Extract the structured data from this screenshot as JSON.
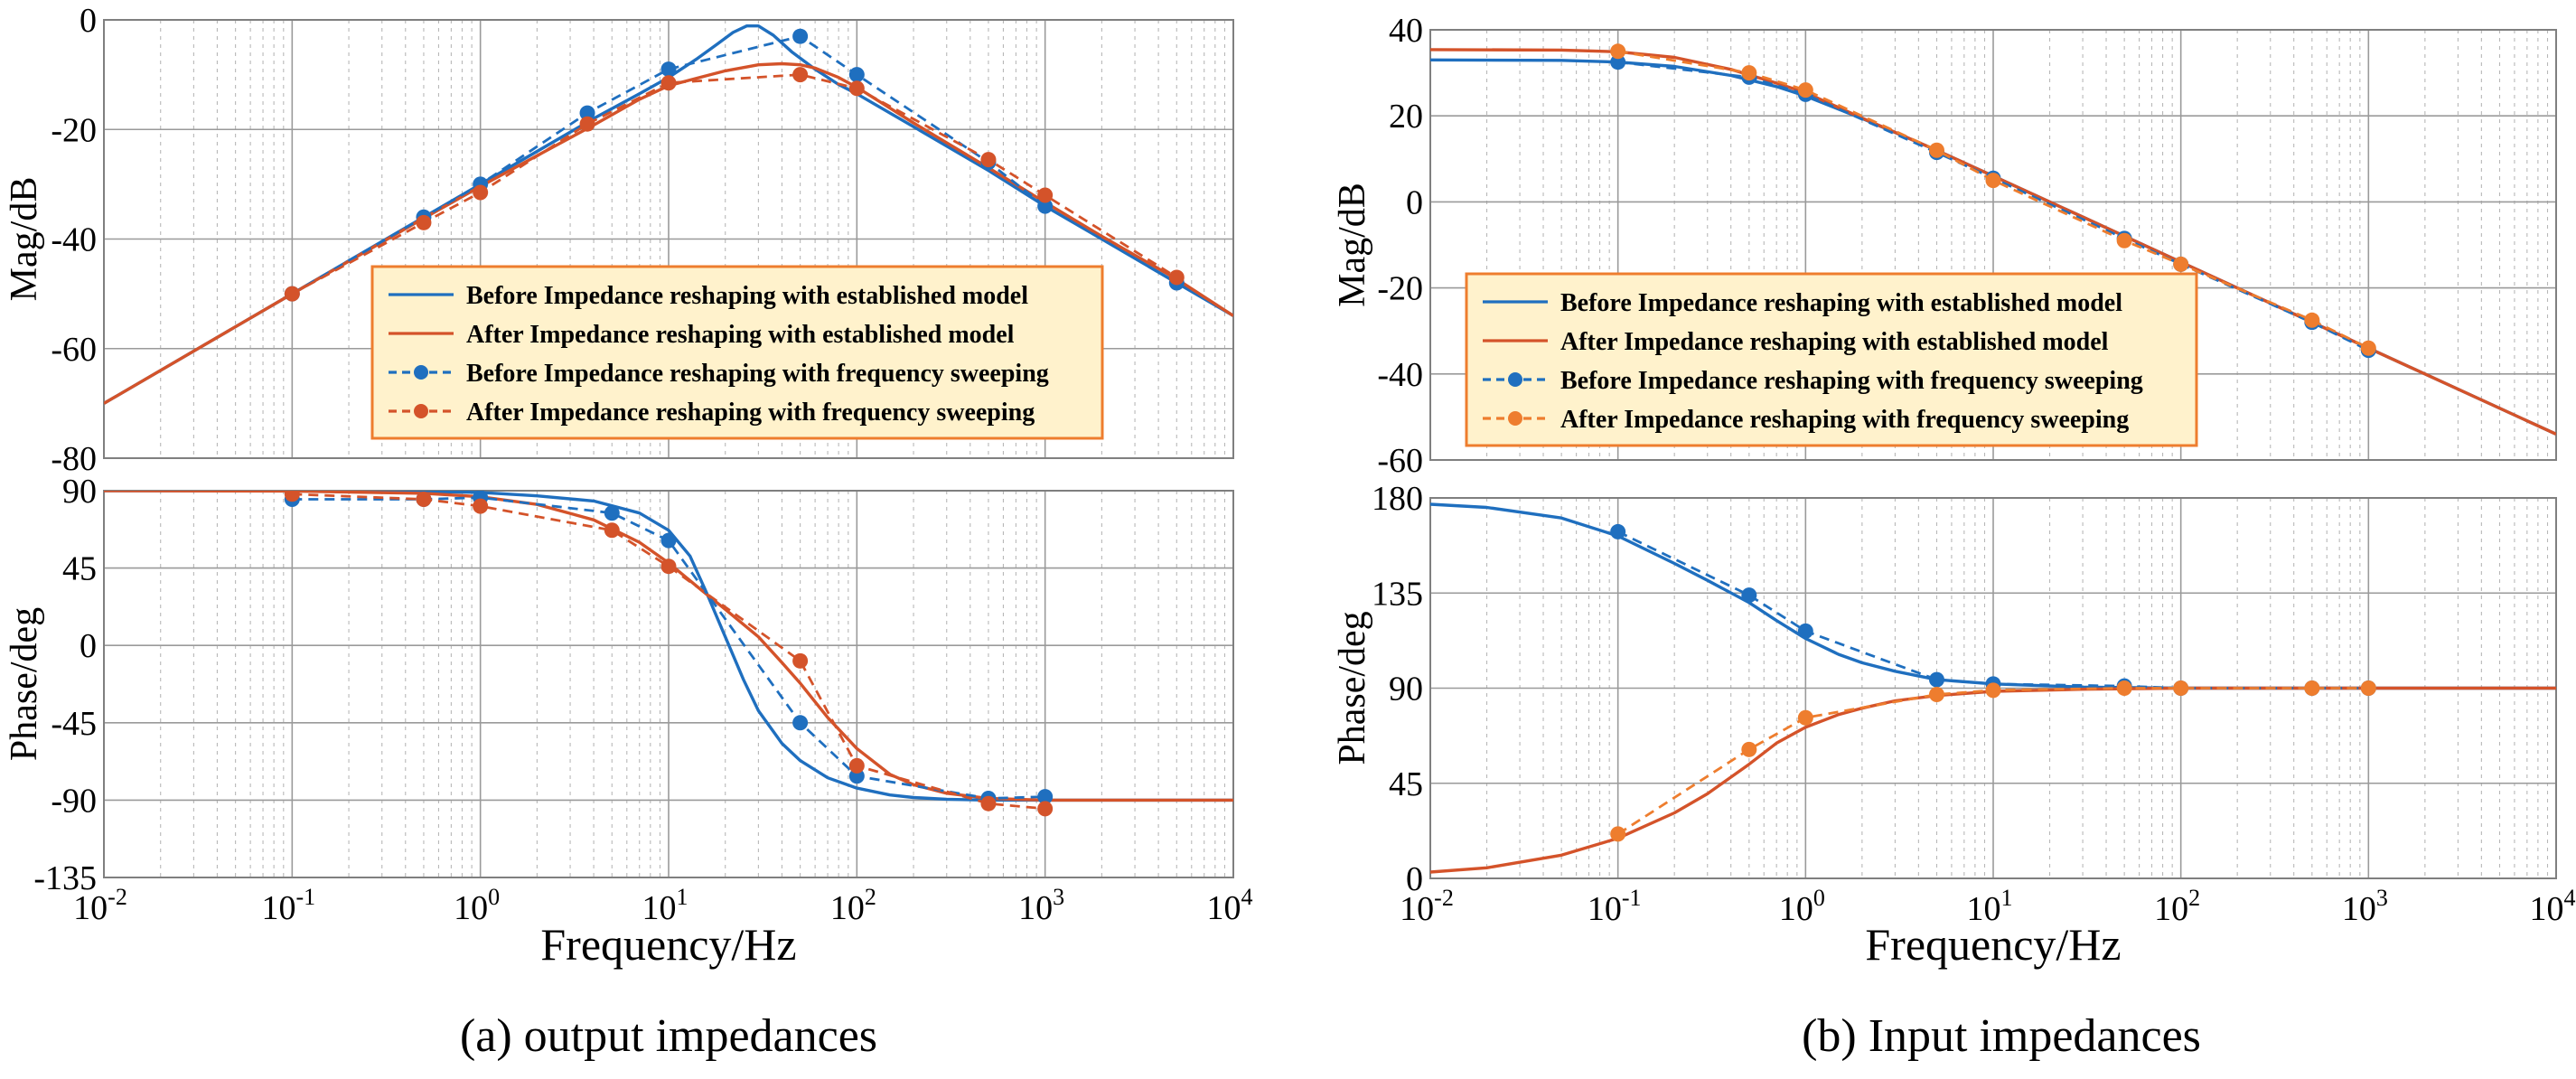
{
  "colors": {
    "blue": "#1f6fbf",
    "red": "#d4532a",
    "orange": "#ee7d2e",
    "legend_bg": "#fff2cc",
    "legend_border": "#ee7d2e"
  },
  "chart_data": [
    {
      "id": "a",
      "type": "line",
      "caption": "(a) output impedances",
      "xlabel": "Frequency/Hz",
      "xscale": "log",
      "xlim": [
        0.01,
        10000
      ],
      "xticks": [
        0.01,
        0.1,
        1,
        10,
        100,
        1000,
        10000
      ],
      "xtick_labels": [
        [
          "10",
          "-2"
        ],
        [
          "10",
          "-1"
        ],
        [
          "10",
          "0"
        ],
        [
          "10",
          "1"
        ],
        [
          "10",
          "2"
        ],
        [
          "10",
          "3"
        ],
        [
          "10",
          "4"
        ]
      ],
      "legend": {
        "position": "lower-right of magnitude panel",
        "entries": [
          {
            "label": "Before Impedance reshaping with established model",
            "series": "before_model"
          },
          {
            "label": "After Impedance reshaping with established model",
            "series": "after_model"
          },
          {
            "label": "Before Impedance reshaping with frequency sweeping",
            "series": "before_sweep"
          },
          {
            "label": "After Impedance reshaping with frequency sweeping",
            "series": "after_sweep"
          }
        ]
      },
      "panels": [
        {
          "name": "magnitude",
          "ylabel": "Mag/dB",
          "ylim": [
            -80,
            0
          ],
          "yticks": [
            0,
            -20,
            -40,
            -60,
            -80
          ],
          "ytick_labels": [
            "0",
            "-20",
            "-40",
            "-60",
            "-80"
          ],
          "series": [
            {
              "key": "before_model",
              "style": "solid",
              "color": "blue",
              "x": [
                0.01,
                0.1,
                0.5,
                1,
                2,
                4,
                7,
                10,
                14,
                18,
                22,
                26,
                30,
                36,
                45,
                60,
                80,
                100,
                200,
                500,
                1000,
                2000,
                5000,
                10000
              ],
              "y": [
                -70,
                -50,
                -36,
                -30,
                -24,
                -18,
                -13.5,
                -10.5,
                -7.2,
                -4.5,
                -2.3,
                -1.1,
                -1.1,
                -2.8,
                -5.8,
                -9.0,
                -11.8,
                -13.5,
                -19.5,
                -27.5,
                -34,
                -40,
                -48,
                -54
              ]
            },
            {
              "key": "after_model",
              "style": "solid",
              "color": "red",
              "x": [
                0.01,
                0.1,
                0.5,
                1,
                2,
                4,
                7,
                10,
                15,
                20,
                30,
                40,
                50,
                60,
                80,
                100,
                200,
                500,
                1000,
                2000,
                5000,
                10000
              ],
              "y": [
                -70,
                -50,
                -36.2,
                -30.4,
                -24.8,
                -19.2,
                -14.5,
                -12.0,
                -10.4,
                -9.3,
                -8.2,
                -8.0,
                -8.2,
                -8.8,
                -10.5,
                -12.3,
                -18.8,
                -27.0,
                -33.3,
                -39.5,
                -47.3,
                -54
              ]
            },
            {
              "key": "before_sweep",
              "style": "dashed",
              "marker": "circle",
              "color": "blue",
              "x": [
                0.1,
                0.5,
                1,
                3.7,
                10,
                50,
                100,
                500,
                1000,
                5000
              ],
              "y": [
                -50,
                -36,
                -30,
                -17,
                -9,
                -3,
                -10,
                -26,
                -34,
                -48
              ]
            },
            {
              "key": "after_sweep",
              "style": "dashed",
              "marker": "circle",
              "color": "red",
              "x": [
                0.1,
                0.5,
                1,
                3.7,
                10,
                50,
                100,
                500,
                1000,
                5000
              ],
              "y": [
                -50,
                -37,
                -31.5,
                -19,
                -11.5,
                -10,
                -12.5,
                -25.5,
                -32,
                -47
              ]
            }
          ]
        },
        {
          "name": "phase",
          "ylabel": "Phase/deg",
          "ylim": [
            -135,
            90
          ],
          "yticks": [
            90,
            45,
            0,
            -45,
            -90,
            -135
          ],
          "ytick_labels": [
            "90",
            "45",
            "0",
            "-45",
            "-90",
            "-135"
          ],
          "series": [
            {
              "key": "before_model",
              "style": "solid",
              "color": "blue",
              "x": [
                0.01,
                0.1,
                0.5,
                1,
                2,
                4,
                7,
                10,
                13,
                16,
                20,
                25,
                30,
                40,
                50,
                70,
                100,
                150,
                200,
                300,
                500,
                1000,
                10000
              ],
              "y": [
                90,
                90,
                89.5,
                89,
                87,
                84,
                77,
                67,
                52,
                30,
                5,
                -20,
                -38,
                -57,
                -67,
                -77,
                -83,
                -87,
                -88.5,
                -89.5,
                -90,
                -90,
                -90
              ]
            },
            {
              "key": "after_model",
              "style": "solid",
              "color": "red",
              "x": [
                0.01,
                0.1,
                0.5,
                1,
                2,
                4,
                7,
                10,
                15,
                20,
                30,
                40,
                50,
                70,
                100,
                150,
                200,
                300,
                500,
                1000,
                10000
              ],
              "y": [
                90,
                89.8,
                88.5,
                86.5,
                82,
                73,
                60,
                48,
                32,
                21,
                5,
                -10,
                -22,
                -42,
                -60,
                -75,
                -81,
                -86,
                -89,
                -90,
                -90
              ]
            },
            {
              "key": "before_sweep",
              "style": "dashed",
              "marker": "circle",
              "color": "blue",
              "x": [
                0.1,
                0.5,
                1,
                5,
                10,
                50,
                100,
                500,
                1000
              ],
              "y": [
                85,
                85,
                86,
                77,
                61,
                -45,
                -76,
                -89,
                -88
              ]
            },
            {
              "key": "after_sweep",
              "style": "dashed",
              "marker": "circle",
              "color": "red",
              "x": [
                0.1,
                0.5,
                1,
                5,
                10,
                50,
                100,
                500,
                1000
              ],
              "y": [
                88,
                85,
                81,
                67,
                46,
                -9,
                -70,
                -92,
                -95
              ]
            }
          ]
        }
      ]
    },
    {
      "id": "b",
      "type": "line",
      "caption": "(b) Input impedances",
      "xlabel": "Frequency/Hz",
      "xscale": "log",
      "xlim": [
        0.01,
        10000
      ],
      "xticks": [
        0.01,
        0.1,
        1,
        10,
        100,
        1000,
        10000
      ],
      "xtick_labels": [
        [
          "10",
          "-2"
        ],
        [
          "10",
          "-1"
        ],
        [
          "10",
          "0"
        ],
        [
          "10",
          "1"
        ],
        [
          "10",
          "2"
        ],
        [
          "10",
          "3"
        ],
        [
          "10",
          "4"
        ]
      ],
      "legend": {
        "position": "lower-left of magnitude panel",
        "entries": [
          {
            "label": "Before Impedance reshaping with established model",
            "series": "before_model"
          },
          {
            "label": "After Impedance reshaping with established model",
            "series": "after_model"
          },
          {
            "label": "Before Impedance reshaping with frequency sweeping",
            "series": "before_sweep"
          },
          {
            "label": "After Impedance reshaping with frequency sweeping",
            "series": "after_sweep"
          }
        ]
      },
      "panels": [
        {
          "name": "magnitude",
          "ylabel": "Mag/dB",
          "ylim": [
            -60,
            40
          ],
          "yticks": [
            40,
            20,
            0,
            -20,
            -40,
            -60
          ],
          "ytick_labels": [
            "40",
            "20",
            "0",
            "-20",
            "-40",
            "-60"
          ],
          "series": [
            {
              "key": "before_model",
              "style": "solid",
              "color": "blue",
              "x": [
                0.01,
                0.05,
                0.1,
                0.2,
                0.4,
                0.7,
                1,
                2,
                5,
                10,
                30,
                100,
                1000,
                10000
              ],
              "y": [
                33,
                32.9,
                32.5,
                31.5,
                29.4,
                26.8,
                24.6,
                19.4,
                12,
                6,
                -3.5,
                -14,
                -34,
                -54
              ]
            },
            {
              "key": "after_model",
              "style": "solid",
              "color": "red",
              "x": [
                0.01,
                0.05,
                0.1,
                0.2,
                0.4,
                0.7,
                1,
                2,
                5,
                10,
                30,
                100,
                1000,
                10000
              ],
              "y": [
                35.4,
                35.3,
                34.9,
                33.6,
                30.8,
                27.6,
                25.4,
                19.5,
                12,
                6,
                -3.5,
                -14,
                -34,
                -54
              ]
            },
            {
              "key": "before_sweep",
              "style": "dashed",
              "marker": "circle",
              "color": "blue",
              "x": [
                0.1,
                0.5,
                1,
                5,
                10,
                50,
                100,
                500,
                1000
              ],
              "y": [
                32.5,
                29,
                25,
                11.5,
                5.5,
                -8.5,
                -14.5,
                -28,
                -34.5
              ]
            },
            {
              "key": "after_sweep",
              "style": "dashed",
              "marker": "circle",
              "color": "orange",
              "x": [
                0.1,
                0.5,
                1,
                5,
                10,
                50,
                100,
                500,
                1000
              ],
              "y": [
                35,
                30,
                26,
                12,
                5,
                -9,
                -14.5,
                -27.5,
                -34
              ]
            }
          ]
        },
        {
          "name": "phase",
          "ylabel": "Phase/deg",
          "ylim": [
            0,
            180
          ],
          "yticks": [
            180,
            135,
            90,
            45,
            0
          ],
          "ytick_labels": [
            "180",
            "135",
            "90",
            "45",
            "0"
          ],
          "series": [
            {
              "key": "before_model",
              "style": "solid",
              "color": "blue",
              "x": [
                0.01,
                0.02,
                0.05,
                0.1,
                0.2,
                0.3,
                0.5,
                0.7,
                1,
                1.5,
                2,
                3,
                5,
                10,
                30,
                100,
                10000
              ],
              "y": [
                177,
                175.5,
                170.5,
                162,
                149,
                141,
                130.5,
                122,
                113.5,
                106,
                102,
                98,
                94,
                92,
                90.5,
                90,
                90
              ]
            },
            {
              "key": "after_model",
              "style": "solid",
              "color": "red",
              "x": [
                0.01,
                0.02,
                0.05,
                0.1,
                0.2,
                0.3,
                0.5,
                0.7,
                1,
                1.5,
                2,
                3,
                5,
                10,
                30,
                100,
                10000
              ],
              "y": [
                3,
                5,
                11,
                19,
                31,
                40,
                54,
                64,
                71.5,
                77.5,
                80.5,
                84,
                86.5,
                88.5,
                89.5,
                90,
                90
              ]
            },
            {
              "key": "before_sweep",
              "style": "dashed",
              "marker": "circle",
              "color": "blue",
              "x": [
                0.1,
                0.5,
                1,
                5,
                10,
                50,
                100,
                500,
                1000
              ],
              "y": [
                164,
                134,
                117,
                94,
                92,
                91,
                90,
                90,
                90
              ]
            },
            {
              "key": "after_sweep",
              "style": "dashed",
              "marker": "circle",
              "color": "orange",
              "x": [
                0.1,
                0.5,
                1,
                5,
                10,
                50,
                100,
                500,
                1000
              ],
              "y": [
                21,
                61,
                76,
                87,
                89,
                90,
                90,
                90,
                90
              ]
            }
          ]
        }
      ]
    }
  ]
}
